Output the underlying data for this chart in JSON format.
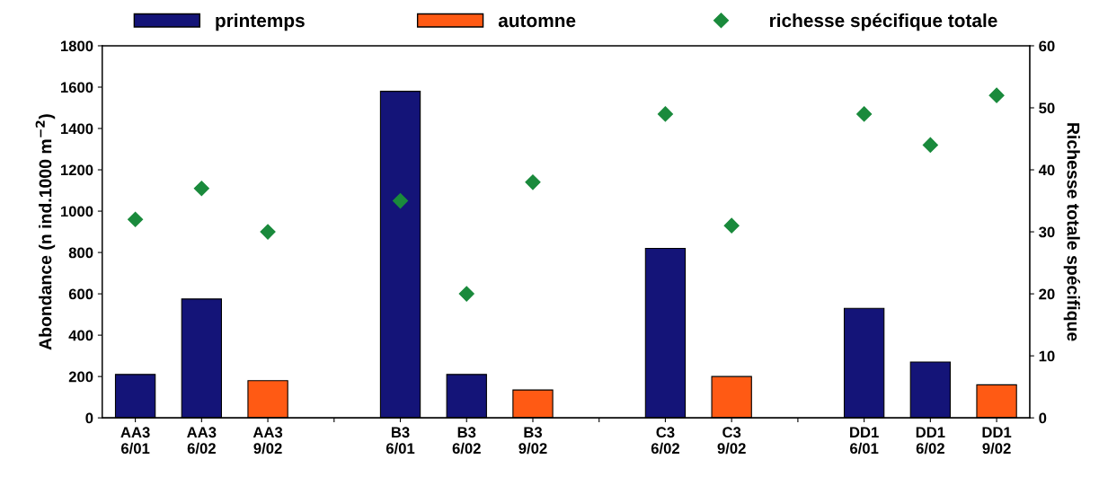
{
  "chart_data": {
    "type": "bar",
    "categories": [
      "AA3\n6/01",
      "AA3\n6/02",
      "AA3\n9/02",
      null,
      "B3\n6/01",
      "B3\n6/02",
      "B3\n9/02",
      null,
      "C3\n6/02",
      "C3\n9/02",
      null,
      "DD1\n6/01",
      "DD1\n6/02",
      "DD1\n9/02"
    ],
    "series": [
      {
        "name": "printemps",
        "color": "#141478",
        "values": [
          210,
          575,
          null,
          null,
          1580,
          210,
          null,
          null,
          820,
          null,
          null,
          530,
          270,
          null
        ]
      },
      {
        "name": "automne",
        "color": "#ff5a14",
        "values": [
          null,
          null,
          180,
          null,
          null,
          null,
          135,
          null,
          null,
          200,
          null,
          null,
          null,
          160
        ]
      },
      {
        "name": "richesse spécifique totale",
        "type": "scatter",
        "axis": "y2",
        "color": "#1a8a3c",
        "marker": "diamond",
        "values": [
          32,
          37,
          30,
          null,
          35,
          20,
          38,
          null,
          49,
          31,
          null,
          49,
          44,
          52
        ]
      }
    ],
    "ylabel": "Abondance (n ind.1000 m$^{−2}$)",
    "y2label": "Richesse totale spécifique",
    "ylim": [
      0,
      1800
    ],
    "yticks": [
      0,
      200,
      400,
      600,
      800,
      1000,
      1200,
      1400,
      1600,
      1800
    ],
    "y2lim": [
      0,
      60
    ],
    "y2ticks": [
      0,
      10,
      20,
      30,
      40,
      50,
      60
    ],
    "legend": "top",
    "grid": false
  }
}
